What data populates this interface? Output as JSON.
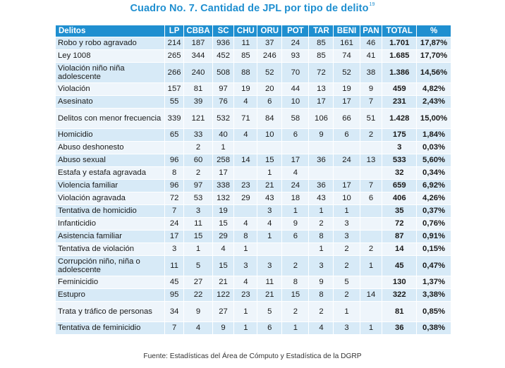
{
  "title": "Cuadro No. 7. Cantidad de JPL por tipo de delito",
  "title_footnote_ref": "19",
  "colors": {
    "header_bg": "#1f8fd0",
    "row_odd": "#d7eaf7",
    "row_even": "#eef5fb",
    "title": "#1f8fd0"
  },
  "columns": [
    "Delitos",
    "LP",
    "CBBA",
    "SC",
    "CHU",
    "ORU",
    "POT",
    "TAR",
    "BENI",
    "PAN",
    "TOTAL",
    "%"
  ],
  "rows": [
    [
      "Robo y robo agravado",
      "214",
      "187",
      "936",
      "11",
      "37",
      "24",
      "85",
      "161",
      "46",
      "1.701",
      "17,87%"
    ],
    [
      "Ley 1008",
      "265",
      "344",
      "452",
      "85",
      "246",
      "93",
      "85",
      "74",
      "41",
      "1.685",
      "17,70%"
    ],
    [
      "Violación niño niña adolescente",
      "266",
      "240",
      "508",
      "88",
      "52",
      "70",
      "72",
      "52",
      "38",
      "1.386",
      "14,56%"
    ],
    [
      "Violación",
      "157",
      "81",
      "97",
      "19",
      "20",
      "44",
      "13",
      "19",
      "9",
      "459",
      "4,82%"
    ],
    [
      "Asesinato",
      "55",
      "39",
      "76",
      "4",
      "6",
      "10",
      "17",
      "17",
      "7",
      "231",
      "2,43%"
    ],
    [
      "Delitos con menor frecuencia",
      "339",
      "121",
      "532",
      "71",
      "84",
      "58",
      "106",
      "66",
      "51",
      "1.428",
      "15,00%"
    ],
    [
      "Homicidio",
      "65",
      "33",
      "40",
      "4",
      "10",
      "6",
      "9",
      "6",
      "2",
      "175",
      "1,84%"
    ],
    [
      "Abuso deshonesto",
      "",
      "2",
      "1",
      "",
      "",
      "",
      "",
      "",
      "",
      "3",
      "0,03%"
    ],
    [
      "Abuso sexual",
      "96",
      "60",
      "258",
      "14",
      "15",
      "17",
      "36",
      "24",
      "13",
      "533",
      "5,60%"
    ],
    [
      "Estafa y estafa agravada",
      "8",
      "2",
      "17",
      "",
      "1",
      "4",
      "",
      "",
      "",
      "32",
      "0,34%"
    ],
    [
      "Violencia familiar",
      "96",
      "97",
      "338",
      "23",
      "21",
      "24",
      "36",
      "17",
      "7",
      "659",
      "6,92%"
    ],
    [
      "Violación agravada",
      "72",
      "53",
      "132",
      "29",
      "43",
      "18",
      "43",
      "10",
      "6",
      "406",
      "4,26%"
    ],
    [
      "Tentativa de homicidio",
      "7",
      "3",
      "19",
      "",
      "3",
      "1",
      "1",
      "1",
      "",
      "35",
      "0,37%"
    ],
    [
      "Infanticidio",
      "24",
      "11",
      "15",
      "4",
      "4",
      "9",
      "2",
      "3",
      "",
      "72",
      "0,76%"
    ],
    [
      "Asistencia familiar",
      "17",
      "15",
      "29",
      "8",
      "1",
      "6",
      "8",
      "3",
      "",
      "87",
      "0,91%"
    ],
    [
      "Tentativa de violación",
      "3",
      "1",
      "4",
      "1",
      "",
      "",
      "1",
      "2",
      "2",
      "14",
      "0,15%"
    ],
    [
      "Corrupción niño, niña o adolescente",
      "11",
      "5",
      "15",
      "3",
      "3",
      "2",
      "3",
      "2",
      "1",
      "45",
      "0,47%"
    ],
    [
      "Feminicidio",
      "45",
      "27",
      "21",
      "4",
      "11",
      "8",
      "9",
      "5",
      "",
      "130",
      "1,37%"
    ],
    [
      "Estupro",
      "95",
      "22",
      "122",
      "23",
      "21",
      "15",
      "8",
      "2",
      "14",
      "322",
      "3,38%"
    ],
    [
      "Trata y tráfico de personas",
      "34",
      "9",
      "27",
      "1",
      "5",
      "2",
      "2",
      "1",
      "",
      "81",
      "0,85%"
    ],
    [
      "Tentativa de feminicidio",
      "7",
      "4",
      "9",
      "1",
      "6",
      "1",
      "4",
      "3",
      "1",
      "36",
      "0,38%"
    ]
  ],
  "source": "Fuente: Estadísticas del Área de Cómputo y Estadística de la DGRP"
}
